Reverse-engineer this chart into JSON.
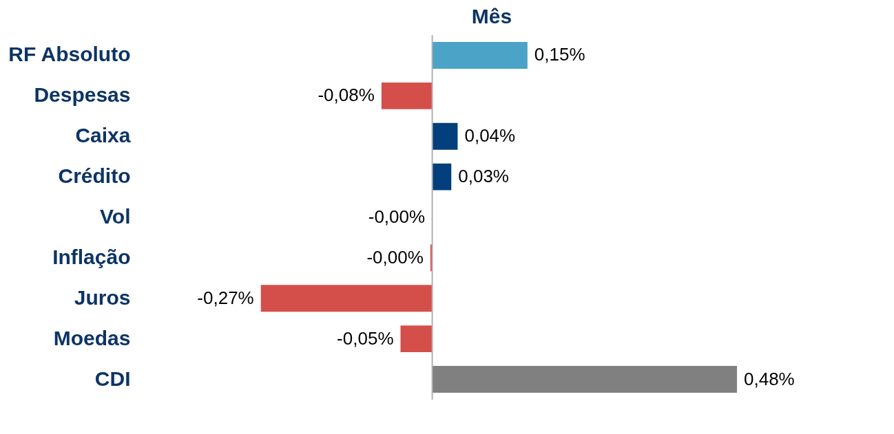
{
  "chart_data": {
    "type": "bar",
    "orientation": "horizontal",
    "title": "Mês",
    "categories": [
      "RF Absoluto",
      "Despesas",
      "Caixa",
      "Crédito",
      "Vol",
      "Inflação",
      "Juros",
      "Moedas",
      "CDI"
    ],
    "values": [
      0.15,
      -0.08,
      0.04,
      0.03,
      -0.0005,
      -0.003,
      -0.27,
      -0.05,
      0.48
    ],
    "value_labels": [
      "0,15%",
      "-0,08%",
      "0,04%",
      "0,03%",
      "-0,00%",
      "-0,00%",
      "-0,27%",
      "-0,05%",
      "0,48%"
    ],
    "colors": [
      "#4ba3c7",
      "#d54f4a",
      "#023f7c",
      "#023f7c",
      "#d54f4a",
      "#d54f4a",
      "#d54f4a",
      "#d54f4a",
      "#808080"
    ],
    "ref_lines": [
      {
        "axis": "x",
        "value": 0,
        "color": "#b0b0b0"
      }
    ],
    "grid": false
  }
}
